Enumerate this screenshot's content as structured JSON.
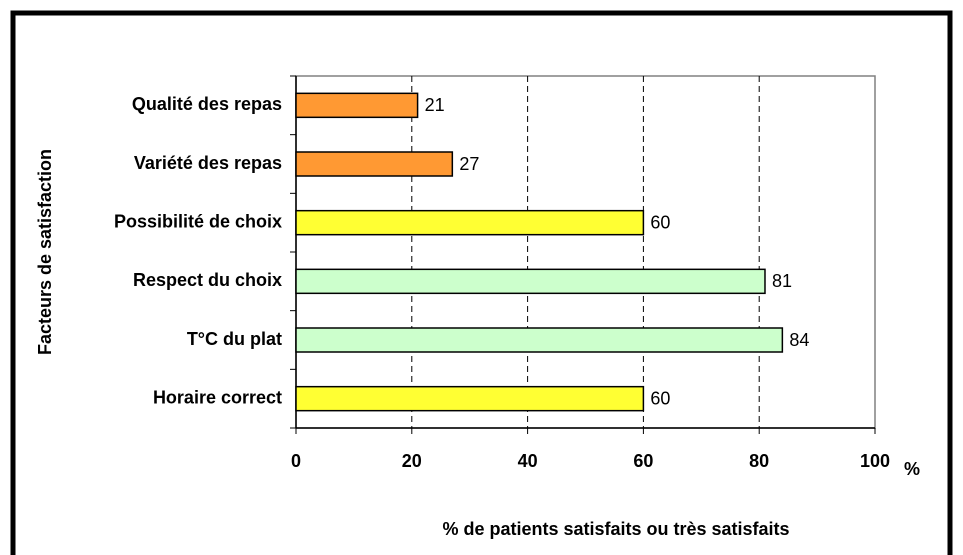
{
  "chart_data": {
    "type": "bar",
    "orientation": "horizontal",
    "xlabel": "% de patients satisfaits ou très satisfaits",
    "ylabel": "Facteurs de satisfaction",
    "x_unit": "%",
    "categories": [
      "Qualité des repas",
      "Variété des repas",
      "Possibilité de choix",
      "Respect du choix",
      "T°C du plat",
      "Horaire correct"
    ],
    "values": [
      21,
      27,
      60,
      81,
      84,
      60
    ],
    "colors": [
      "#ff9933",
      "#ff9933",
      "#ffff33",
      "#ccffcc",
      "#ccffcc",
      "#ffff33"
    ],
    "xlim": [
      0,
      100
    ],
    "xticks": [
      0,
      20,
      40,
      60,
      80,
      100
    ],
    "grid": true
  }
}
